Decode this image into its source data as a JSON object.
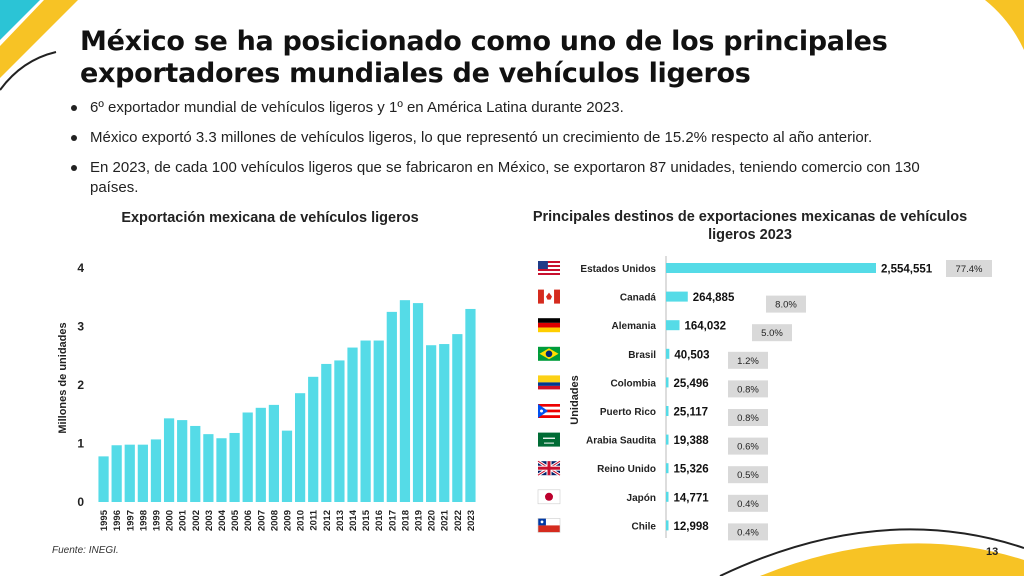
{
  "slide": {
    "title": "México se ha posicionado como uno de los principales exportadores mundiales de vehículos ligeros",
    "bullets": [
      "6º exportador mundial de vehículos ligeros y 1º en América Latina durante 2023.",
      "México exportó 3.3 millones de vehículos ligeros, lo que representó un crecimiento de 15.2% respecto al año anterior.",
      "En 2023, de cada 100 vehículos ligeros que se fabricaron en México, se exportaron 87 unidades, teniendo comercio con 130 países."
    ],
    "source": "Fuente: INEGI.",
    "page_number": "13",
    "colors": {
      "bar": "#55dbe7",
      "accent_yellow": "#f7c325",
      "accent_cyan": "#2bc4d6",
      "pct_box": "#d9d9d9"
    }
  },
  "chart_data": [
    {
      "type": "bar",
      "title": "Exportación mexicana de vehículos ligeros",
      "ylabel": "Millones de unidades",
      "xlabel": "",
      "ylim": [
        0,
        4
      ],
      "yticks": [
        0,
        1,
        2,
        3,
        4
      ],
      "grid": false,
      "categories": [
        "1995",
        "1996",
        "1997",
        "1998",
        "1999",
        "2000",
        "2001",
        "2002",
        "2003",
        "2004",
        "2005",
        "2006",
        "2007",
        "2008",
        "2009",
        "2010",
        "2011",
        "2012",
        "2013",
        "2014",
        "2015",
        "2016",
        "2017",
        "2018",
        "2019",
        "2020",
        "2021",
        "2022",
        "2023"
      ],
      "values": [
        0.78,
        0.97,
        0.98,
        0.98,
        1.07,
        1.43,
        1.4,
        1.3,
        1.16,
        1.09,
        1.18,
        1.53,
        1.61,
        1.66,
        1.22,
        1.86,
        2.14,
        2.36,
        2.42,
        2.64,
        2.76,
        2.76,
        3.25,
        3.45,
        3.4,
        2.68,
        2.7,
        2.87,
        3.3
      ]
    },
    {
      "type": "bar",
      "orientation": "horizontal",
      "title": "Principales destinos de exportaciones mexicanas de vehículos ligeros 2023",
      "ylabel": "Unidades",
      "categories": [
        "Estados Unidos",
        "Canadá",
        "Alemania",
        "Brasil",
        "Colombia",
        "Puerto Rico",
        "Arabia Saudita",
        "Reino Unido",
        "Japón",
        "Chile"
      ],
      "flags": [
        "flag-usa",
        "flag-canada",
        "flag-germany",
        "flag-brazil",
        "flag-colombia",
        "flag-puerto-rico",
        "flag-saudi-arabia",
        "flag-uk",
        "flag-japan",
        "flag-chile"
      ],
      "values": [
        2554551,
        264885,
        164032,
        40503,
        25496,
        25117,
        19388,
        15326,
        14771,
        12998
      ],
      "value_labels": [
        "2,554,551",
        "264,885",
        "164,032",
        "40,503",
        "25,496",
        "25,117",
        "19,388",
        "15,326",
        "14,771",
        "12,998"
      ],
      "percent_labels": [
        "77.4%",
        "8.0%",
        "5.0%",
        "1.2%",
        "0.8%",
        "0.8%",
        "0.6%",
        "0.5%",
        "0.4%",
        "0.4%"
      ]
    }
  ]
}
